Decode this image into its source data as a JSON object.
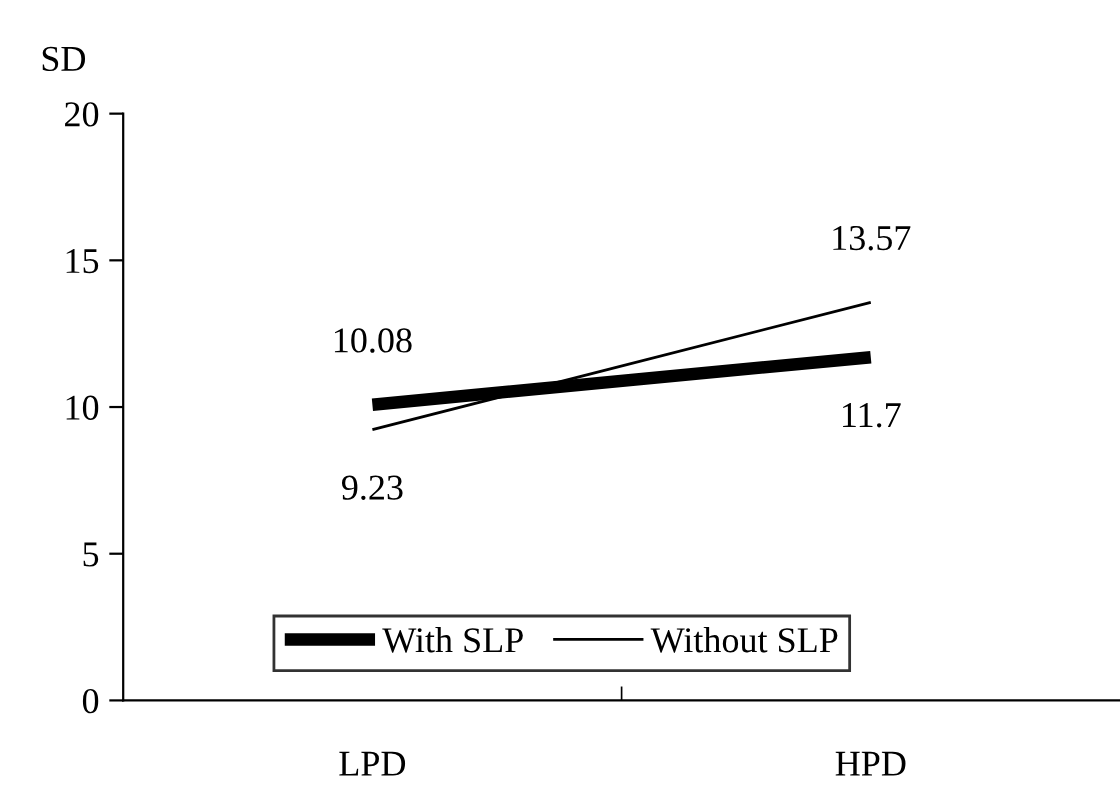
{
  "chart_data": {
    "type": "line",
    "ylabel": "SD",
    "categories": [
      "LPD",
      "HPD"
    ],
    "series": [
      {
        "name": "With SLP",
        "color": "#000000",
        "values": [
          10.08,
          11.7
        ]
      },
      {
        "name": "Without SLP",
        "color": "#000000",
        "values": [
          9.23,
          13.57
        ]
      }
    ],
    "ylim": [
      0,
      20
    ],
    "yticks": [
      0,
      5,
      10,
      15,
      20
    ],
    "grid": false,
    "legend": "bottom",
    "data_labels": true,
    "marker": "none",
    "line_style": "solid"
  }
}
